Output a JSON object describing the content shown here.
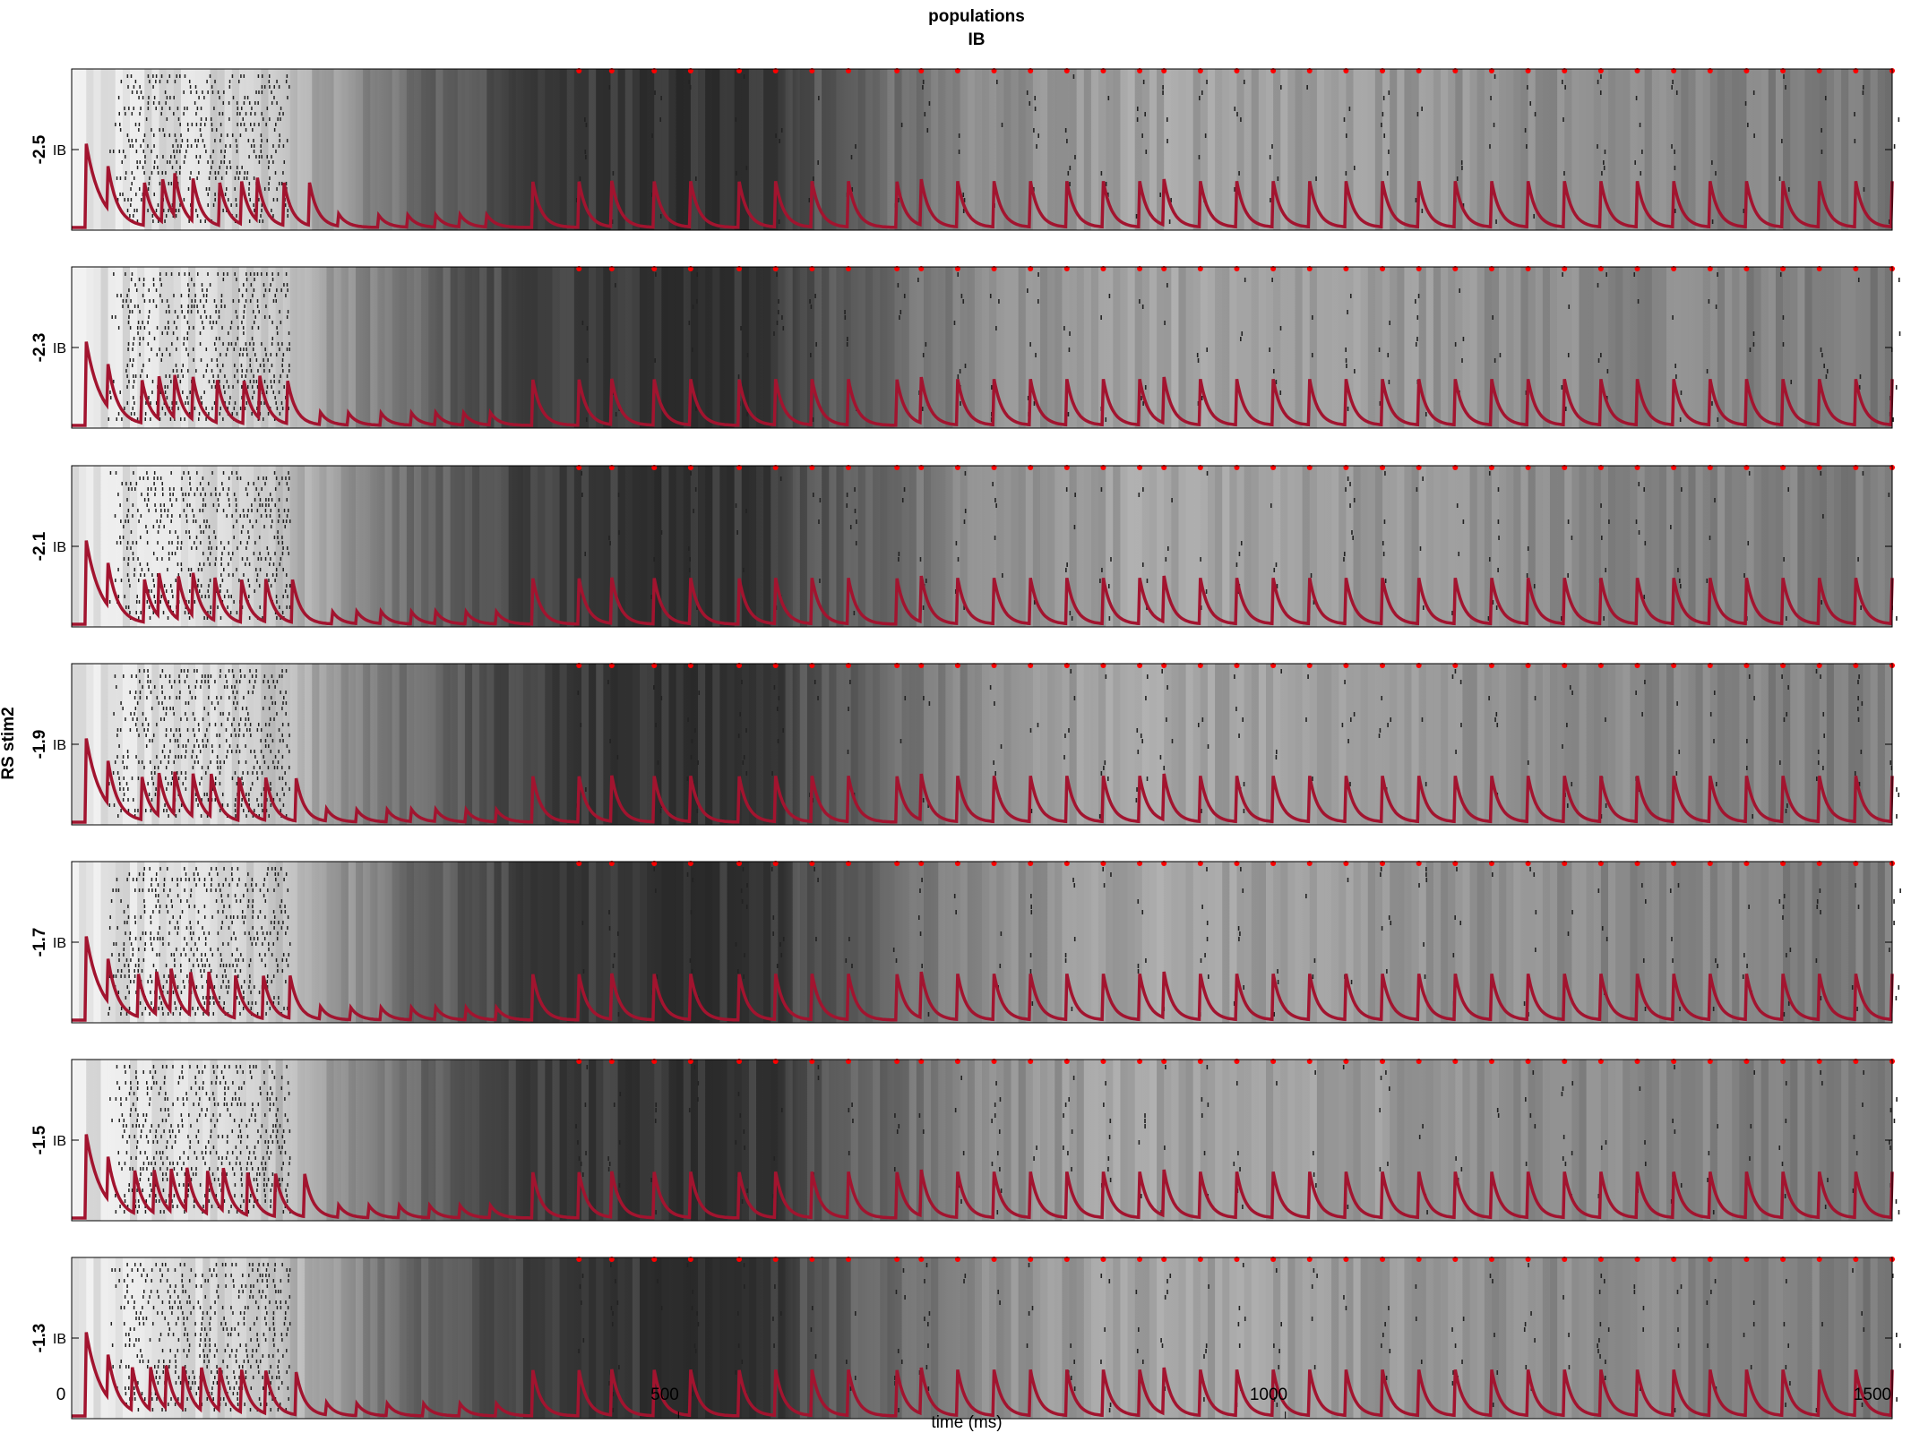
{
  "chart_data": {
    "type": "raster",
    "title": [
      "populations",
      "IB"
    ],
    "xlabel": "time (ms)",
    "xlim": [
      0,
      1500
    ],
    "xticks": [
      "0",
      "500",
      "1000",
      "1500"
    ],
    "ylabel": "RS stim2",
    "population_label": "IB",
    "trace_color": "#A2142F",
    "spike_marker_color": "#ff0000",
    "panels": [
      {
        "label": "-2.5",
        "trace_peaks_ms": [
          30,
          60,
          75,
          85,
          100,
          122,
          140,
          153,
          175,
          196,
          220,
          253,
          277,
          300,
          320,
          342,
          380,
          418,
          445,
          480,
          510,
          550,
          580,
          610,
          640,
          680,
          700,
          730,
          760,
          790,
          820,
          850,
          880,
          900,
          930,
          960,
          990,
          1020,
          1050,
          1080,
          1110,
          1140,
          1170,
          1200,
          1230,
          1260,
          1290,
          1320,
          1350,
          1380,
          1410,
          1440,
          1470,
          1500
        ]
      },
      {
        "label": "-2.3",
        "trace_peaks_ms": [
          30,
          58,
          72,
          85,
          100,
          120,
          142,
          155,
          178,
          205,
          228,
          255,
          280,
          300,
          323,
          345,
          380,
          418,
          445,
          480,
          510,
          550,
          580,
          610,
          640,
          680,
          700,
          730,
          760,
          790,
          820,
          850,
          880,
          900,
          930,
          960,
          990,
          1020,
          1050,
          1080,
          1110,
          1140,
          1170,
          1200,
          1230,
          1260,
          1290,
          1320,
          1350,
          1380,
          1410,
          1440,
          1470,
          1500
        ]
      },
      {
        "label": "-2.1",
        "trace_peaks_ms": [
          30,
          60,
          72,
          88,
          100,
          118,
          140,
          160,
          182,
          215,
          235,
          255,
          280,
          300,
          325,
          350,
          380,
          418,
          445,
          480,
          510,
          550,
          580,
          610,
          640,
          680,
          700,
          730,
          760,
          790,
          820,
          850,
          880,
          900,
          930,
          960,
          990,
          1020,
          1050,
          1080,
          1110,
          1140,
          1170,
          1200,
          1230,
          1260,
          1290,
          1320,
          1350,
          1380,
          1410,
          1440,
          1470,
          1500
        ]
      },
      {
        "label": "-1.9",
        "trace_peaks_ms": [
          30,
          58,
          72,
          85,
          100,
          115,
          138,
          160,
          185,
          210,
          235,
          260,
          280,
          300,
          325,
          350,
          380,
          418,
          445,
          480,
          510,
          550,
          580,
          610,
          640,
          680,
          700,
          730,
          760,
          790,
          820,
          850,
          880,
          900,
          930,
          960,
          990,
          1020,
          1050,
          1080,
          1110,
          1140,
          1170,
          1200,
          1230,
          1260,
          1290,
          1320,
          1350,
          1380,
          1410,
          1440,
          1470,
          1500
        ]
      },
      {
        "label": "-1.7",
        "trace_peaks_ms": [
          30,
          55,
          70,
          82,
          98,
          113,
          135,
          158,
          180,
          205,
          230,
          255,
          280,
          300,
          325,
          350,
          380,
          418,
          445,
          480,
          510,
          550,
          580,
          610,
          640,
          680,
          700,
          730,
          760,
          790,
          820,
          850,
          880,
          900,
          930,
          960,
          990,
          1020,
          1050,
          1080,
          1110,
          1140,
          1170,
          1200,
          1230,
          1260,
          1290,
          1320,
          1350,
          1380,
          1410,
          1440,
          1470,
          1500
        ]
      },
      {
        "label": "-1.5",
        "trace_peaks_ms": [
          30,
          52,
          68,
          82,
          95,
          112,
          125,
          145,
          168,
          192,
          220,
          245,
          270,
          295,
          320,
          345,
          380,
          418,
          445,
          480,
          510,
          550,
          580,
          610,
          640,
          680,
          700,
          730,
          760,
          790,
          820,
          850,
          880,
          900,
          930,
          960,
          990,
          1020,
          1050,
          1080,
          1110,
          1140,
          1170,
          1200,
          1230,
          1260,
          1290,
          1320,
          1350,
          1380,
          1410,
          1440,
          1470,
          1500
        ]
      },
      {
        "label": "-1.3",
        "trace_peaks_ms": [
          30,
          50,
          65,
          78,
          92,
          107,
          122,
          140,
          160,
          185,
          210,
          235,
          260,
          290,
          320,
          350,
          380,
          418,
          445,
          480,
          510,
          550,
          580,
          610,
          640,
          680,
          700,
          730,
          760,
          790,
          820,
          850,
          880,
          900,
          930,
          960,
          990,
          1020,
          1050,
          1080,
          1110,
          1140,
          1170,
          1200,
          1230,
          1260,
          1290,
          1320,
          1350,
          1380,
          1410,
          1440,
          1470,
          1500
        ]
      }
    ]
  }
}
